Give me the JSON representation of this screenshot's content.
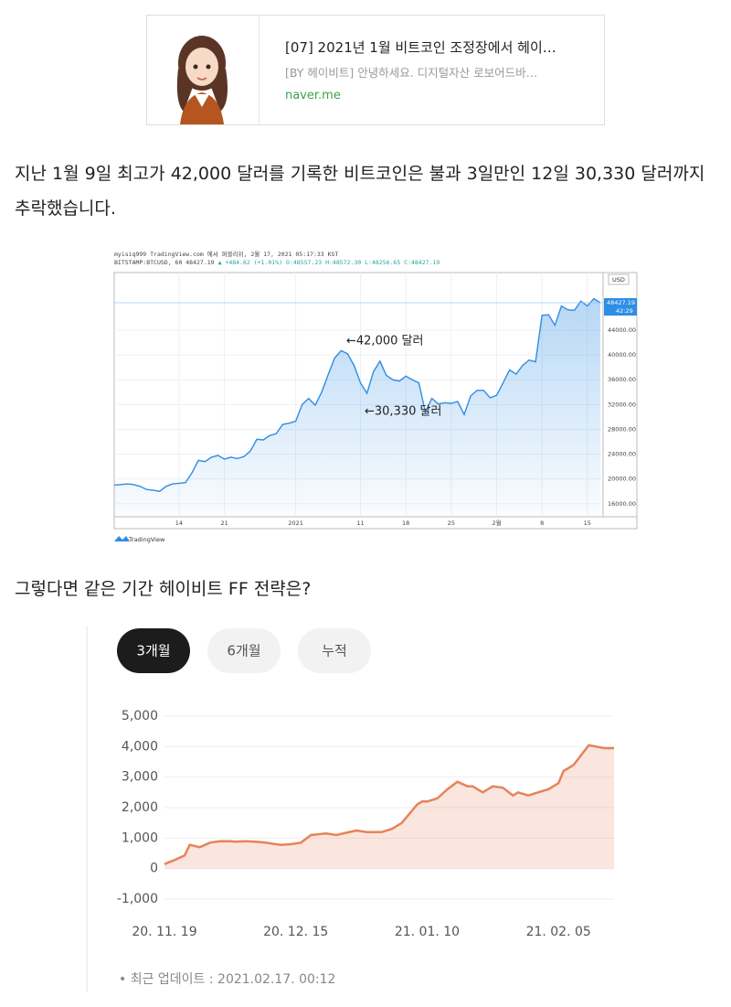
{
  "link_card": {
    "title": "[07] 2021년 1월 비트코인 조정장에서 헤이…",
    "description": "[BY 헤이비트] 안녕하세요. 디지털자산 로보어드바…",
    "domain": "naver.me"
  },
  "paragraphs": [
    "지난 1월 9일 최고가 42,000 달러를 기록한 비트코인은 불과 3일만인 12일 30,330 달러까지 추락했습니다.",
    "그렇다면 같은 기간 헤이비트 FF 전략은?"
  ],
  "chart_data": [
    {
      "type": "line",
      "header": [
        "myisiq999 TradingView.com 에서 퍼블리쉬, 2월 17, 2021 05:17:33 KST",
        "BITSTAMP:BTCUSD, 60 48427.19",
        "▲ +484.62 (+1.01%)",
        "O:48557.23 H:48572.30 L:48256.65 C:48427.19"
      ],
      "currency": "USD",
      "brand": "TradingView",
      "annotations": [
        "←42,000 달러",
        "←30,330 달러"
      ],
      "last_price": {
        "value": 48427.19,
        "label": "48427.19"
      },
      "countdown": "42:29",
      "color": "#2f8de4",
      "values": [
        19000,
        19100,
        19200,
        19100,
        18800,
        18300,
        18200,
        18000,
        18800,
        19200,
        19300,
        19400,
        21000,
        23000,
        22800,
        23500,
        23800,
        23200,
        23500,
        23300,
        23600,
        24500,
        26400,
        26300,
        27000,
        27300,
        28800,
        29000,
        29300,
        32000,
        33000,
        31900,
        34000,
        36800,
        39500,
        40700,
        40200,
        38300,
        35500,
        33800,
        37300,
        39000,
        36700,
        36000,
        35800,
        36600,
        36000,
        35500,
        30800,
        33000,
        32100,
        32300,
        32200,
        32500,
        30400,
        33400,
        34300,
        34300,
        33100,
        33500,
        35500,
        37600,
        36900,
        38300,
        39200,
        38900,
        46400,
        46500,
        44800,
        47900,
        47300,
        47200,
        48700,
        47900,
        49100,
        48427.19
      ],
      "xlim": [
        0,
        75
      ],
      "xticks": [
        {
          "value": 10,
          "label": "14"
        },
        {
          "value": 17,
          "label": "21"
        },
        {
          "value": 28,
          "label": "2021"
        },
        {
          "value": 38,
          "label": "11"
        },
        {
          "value": 45,
          "label": "18"
        },
        {
          "value": 52,
          "label": "25"
        },
        {
          "value": 59,
          "label": "2월"
        },
        {
          "value": 66,
          "label": "8"
        },
        {
          "value": 73,
          "label": "15"
        }
      ],
      "ylim": [
        13900,
        53300
      ],
      "yticks": [
        {
          "value": 16000,
          "label": "16000.00"
        },
        {
          "value": 20000,
          "label": "20000.00"
        },
        {
          "value": 24000,
          "label": "24000.00"
        },
        {
          "value": 28000,
          "label": "28000.00"
        },
        {
          "value": 32000,
          "label": "32000.00"
        },
        {
          "value": 36000,
          "label": "36000.00"
        },
        {
          "value": 40000,
          "label": "40000.00"
        },
        {
          "value": 44000,
          "label": "44000.00"
        }
      ],
      "grid": true
    },
    {
      "type": "area",
      "tabs": [
        "3개월",
        "6개월",
        "누적"
      ],
      "active_tab": 0,
      "color": "#e8825a",
      "x": [
        0,
        2,
        4,
        5,
        7,
        9,
        11,
        13,
        14,
        16,
        18,
        20,
        22,
        23,
        25,
        27,
        29,
        32,
        34,
        38,
        40,
        43,
        45,
        47,
        50,
        51,
        52,
        54,
        56,
        58,
        60,
        61,
        63,
        65,
        67,
        69,
        70,
        72,
        74,
        76,
        78,
        79,
        81,
        84,
        87,
        89
      ],
      "values": [
        150,
        280,
        430,
        780,
        700,
        850,
        900,
        900,
        880,
        900,
        880,
        850,
        800,
        780,
        800,
        850,
        1100,
        1150,
        1100,
        1250,
        1200,
        1200,
        1300,
        1500,
        2100,
        2200,
        2200,
        2300,
        2600,
        2850,
        2700,
        2700,
        2500,
        2700,
        2650,
        2400,
        2500,
        2400,
        2500,
        2600,
        2800,
        3200,
        3400,
        4050,
        3950,
        3950
      ],
      "xlim": [
        0,
        89
      ],
      "xticks": [
        {
          "value": 0,
          "label": "20. 11. 19"
        },
        {
          "value": 26,
          "label": "20. 12. 15"
        },
        {
          "value": 52,
          "label": "21. 01. 10"
        },
        {
          "value": 78,
          "label": "21. 02. 05"
        }
      ],
      "ylim": [
        -1000,
        5000
      ],
      "yticks": [
        {
          "value": -1000,
          "label": "-1,000"
        },
        0,
        {
          "value": 1000,
          "label": "1,000"
        },
        {
          "value": 2000,
          "label": "2,000"
        },
        {
          "value": 3000,
          "label": "3,000"
        },
        {
          "value": 4000,
          "label": "4,000"
        },
        {
          "value": 5000,
          "label": "5,000"
        }
      ],
      "grid": true,
      "footnote": "• 최근 업데이트 : 2021.02.17. 00:12"
    }
  ]
}
